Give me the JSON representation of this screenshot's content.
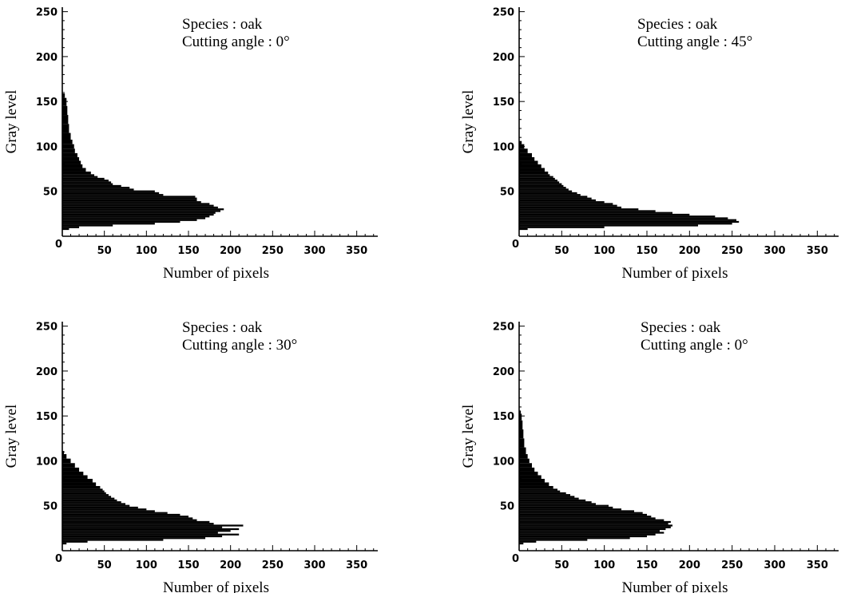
{
  "chart_data": [
    {
      "type": "bar",
      "orientation": "horizontal",
      "annotation": [
        "Species : oak",
        "Cutting angle : 0°"
      ],
      "xlabel": "Number of pixels",
      "ylabel": "Gray level",
      "xlim": [
        0,
        375
      ],
      "ylim": [
        0,
        255
      ],
      "x_ticks": [
        "0",
        "50",
        "100",
        "150",
        "200",
        "250",
        "300",
        "350"
      ],
      "y_ticks": [
        "50",
        "100",
        "150",
        "200",
        "250"
      ],
      "grid": false,
      "gray_levels": [
        8,
        10,
        12,
        14,
        16,
        18,
        20,
        22,
        24,
        26,
        28,
        30,
        32,
        34,
        36,
        38,
        40,
        42,
        44,
        46,
        48,
        50,
        52,
        54,
        56,
        58,
        60,
        62,
        64,
        66,
        68,
        70,
        74,
        78,
        82,
        86,
        90,
        95,
        100,
        105,
        110,
        120,
        130,
        140,
        150,
        158
      ],
      "values": [
        8,
        20,
        60,
        110,
        140,
        160,
        170,
        175,
        180,
        182,
        188,
        192,
        185,
        180,
        175,
        165,
        160,
        160,
        158,
        120,
        115,
        110,
        85,
        80,
        70,
        60,
        58,
        55,
        50,
        42,
        38,
        34,
        28,
        24,
        22,
        20,
        18,
        15,
        14,
        12,
        10,
        8,
        7,
        6,
        5,
        3
      ]
    },
    {
      "type": "bar",
      "orientation": "horizontal",
      "annotation": [
        "Species : oak",
        "Cutting angle : 45°"
      ],
      "xlabel": "Number of pixels",
      "ylabel": "Gray level",
      "xlim": [
        0,
        375
      ],
      "ylim": [
        0,
        255
      ],
      "x_ticks": [
        "0",
        "50",
        "100",
        "150",
        "200",
        "250",
        "300",
        "350"
      ],
      "y_ticks": [
        "50",
        "100",
        "150",
        "200",
        "250"
      ],
      "grid": false,
      "gray_levels": [
        8,
        10,
        12,
        14,
        16,
        18,
        20,
        22,
        24,
        26,
        28,
        30,
        32,
        34,
        36,
        38,
        40,
        42,
        44,
        46,
        48,
        50,
        52,
        54,
        56,
        58,
        60,
        62,
        64,
        66,
        68,
        70,
        74,
        78,
        82,
        86,
        90,
        95,
        100,
        105
      ],
      "values": [
        10,
        100,
        210,
        250,
        258,
        255,
        245,
        230,
        200,
        180,
        160,
        140,
        120,
        115,
        110,
        100,
        90,
        85,
        80,
        72,
        68,
        62,
        58,
        55,
        52,
        50,
        47,
        45,
        42,
        40,
        36,
        34,
        30,
        26,
        22,
        18,
        15,
        10,
        6,
        3
      ]
    },
    {
      "type": "bar",
      "orientation": "horizontal",
      "annotation": [
        "Species : oak",
        "Cutting angle : 30°"
      ],
      "xlabel": "Number of pixels",
      "ylabel": "Gray level",
      "xlim": [
        0,
        375
      ],
      "ylim": [
        0,
        255
      ],
      "x_ticks": [
        "0",
        "50",
        "100",
        "150",
        "200",
        "250",
        "300",
        "350"
      ],
      "y_ticks": [
        "50",
        "100",
        "150",
        "200",
        "250"
      ],
      "grid": false,
      "gray_levels": [
        8,
        10,
        12,
        14,
        16,
        18,
        20,
        22,
        24,
        26,
        28,
        30,
        32,
        34,
        36,
        38,
        40,
        42,
        44,
        46,
        48,
        50,
        52,
        54,
        56,
        58,
        60,
        62,
        64,
        66,
        68,
        70,
        74,
        78,
        82,
        86,
        90,
        95,
        100,
        105,
        110
      ],
      "values": [
        5,
        30,
        120,
        170,
        190,
        210,
        185,
        200,
        210,
        190,
        215,
        180,
        175,
        160,
        155,
        150,
        140,
        125,
        110,
        100,
        90,
        80,
        75,
        70,
        65,
        62,
        58,
        55,
        52,
        50,
        48,
        45,
        40,
        36,
        30,
        25,
        20,
        15,
        10,
        5,
        2
      ]
    },
    {
      "type": "bar",
      "orientation": "horizontal",
      "annotation": [
        "Species : oak",
        "Cutting angle : 0°"
      ],
      "xlabel": "Number of pixels",
      "ylabel": "Gray level",
      "xlim": [
        0,
        375
      ],
      "ylim": [
        0,
        255
      ],
      "x_ticks": [
        "0",
        "50",
        "100",
        "150",
        "200",
        "250",
        "300",
        "350"
      ],
      "y_ticks": [
        "50",
        "100",
        "150",
        "200",
        "250"
      ],
      "grid": false,
      "gray_levels": [
        8,
        10,
        12,
        14,
        16,
        18,
        20,
        22,
        24,
        26,
        28,
        30,
        32,
        34,
        36,
        38,
        40,
        42,
        44,
        46,
        48,
        50,
        52,
        54,
        56,
        58,
        60,
        62,
        64,
        66,
        68,
        70,
        74,
        78,
        82,
        86,
        90,
        95,
        100,
        105,
        110,
        120,
        130,
        140,
        150,
        155
      ],
      "values": [
        5,
        20,
        80,
        130,
        150,
        160,
        170,
        165,
        172,
        178,
        180,
        175,
        178,
        170,
        160,
        155,
        150,
        145,
        135,
        120,
        110,
        105,
        90,
        85,
        78,
        70,
        65,
        60,
        55,
        48,
        45,
        40,
        35,
        30,
        26,
        22,
        18,
        15,
        12,
        10,
        8,
        6,
        5,
        4,
        3,
        2
      ]
    }
  ]
}
